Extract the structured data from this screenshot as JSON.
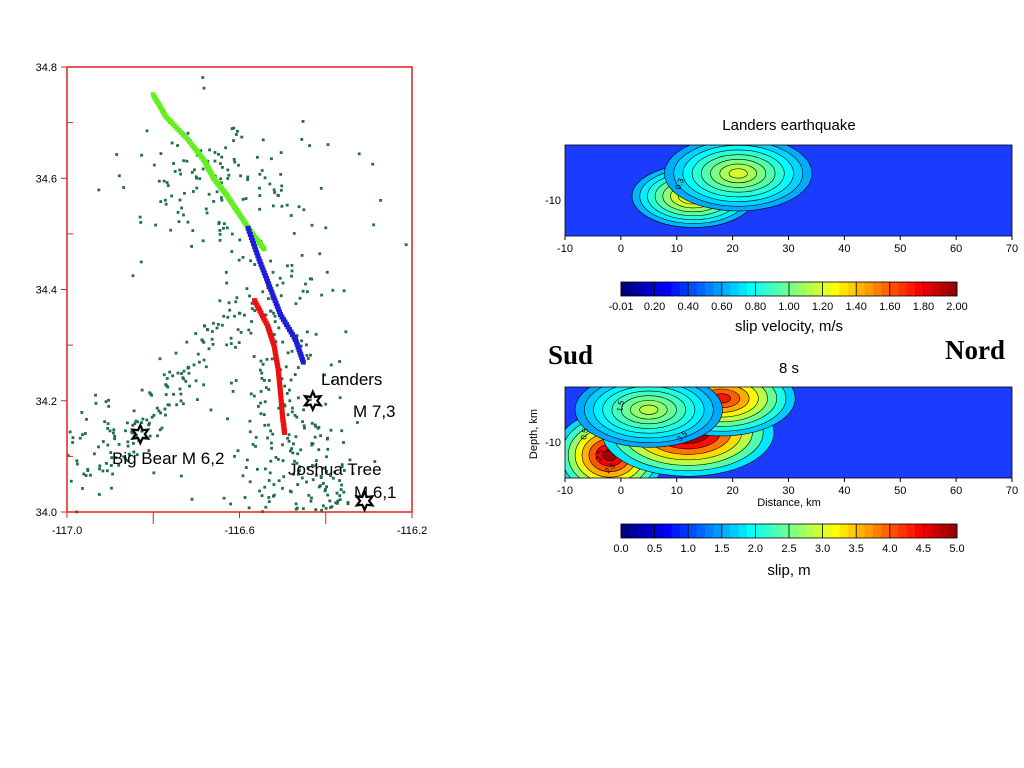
{
  "page": {
    "left_label": "Sud",
    "right_label": "Nord"
  },
  "colors": {
    "map_axis": "#e02020",
    "seismicity": "#1e6e46",
    "segment_north": "#66ee22",
    "segment_middle": "#1e1ed6",
    "segment_south": "#ee1111",
    "field": "#1a3cff",
    "contour": "#000000"
  },
  "chart_data": [
    {
      "type": "scatter",
      "xlim": [
        -117.0,
        -116.2
      ],
      "ylim": [
        34.0,
        34.8
      ],
      "x_ticks": [
        "-117.0",
        "-116.6",
        "-116.2"
      ],
      "y_ticks": [
        "34.0",
        "34.2",
        "34.4",
        "34.6",
        "34.8"
      ],
      "grid": false,
      "series": [
        {
          "segment": "north",
          "color": "green",
          "points": [
            [
              -116.8,
              34.75
            ],
            [
              -116.77,
              34.71
            ],
            [
              -116.72,
              34.67
            ],
            [
              -116.68,
              34.63
            ],
            [
              -116.66,
              34.6
            ],
            [
              -116.63,
              34.57
            ],
            [
              -116.6,
              34.535
            ],
            [
              -116.57,
              34.5
            ],
            [
              -116.54,
              34.47
            ]
          ]
        },
        {
          "segment": "middle",
          "color": "blue",
          "points": [
            [
              -116.58,
              34.51
            ],
            [
              -116.555,
              34.455
            ],
            [
              -116.53,
              34.405
            ],
            [
              -116.505,
              34.355
            ],
            [
              -116.47,
              34.31
            ],
            [
              -116.45,
              34.265
            ]
          ]
        },
        {
          "segment": "south",
          "color": "red",
          "points": [
            [
              -116.565,
              34.38
            ],
            [
              -116.535,
              34.335
            ],
            [
              -116.52,
              34.3
            ],
            [
              -116.51,
              34.255
            ],
            [
              -116.505,
              34.215
            ],
            [
              -116.5,
              34.17
            ],
            [
              -116.495,
              34.14
            ]
          ]
        }
      ],
      "events": [
        {
          "name": "Landers",
          "magnitude": "M 7,3",
          "x": -116.43,
          "y": 34.2
        },
        {
          "name": "Big Bear M 6,2",
          "x": -116.83,
          "y": 34.14
        },
        {
          "name": "Joshua Tree",
          "magnitude": "M 6,1",
          "x": -116.31,
          "y": 34.02
        }
      ]
    },
    {
      "type": "heatmap",
      "title": "Landers earthquake",
      "subtitle": "",
      "xlim": [
        -10,
        70
      ],
      "x_ticks": [
        "-10",
        "0",
        "10",
        "20",
        "30",
        "40",
        "50",
        "60",
        "70"
      ],
      "y_ticks": [
        "-10"
      ],
      "xlabel": "",
      "ylabel": "",
      "contour_labels": [
        "0.3"
      ],
      "colorbar": {
        "label": "slip velocity, m/s",
        "ticks": [
          "-0.01",
          "0.20",
          "0.40",
          "0.60",
          "0.80",
          "1.00",
          "1.20",
          "1.40",
          "1.60",
          "1.80",
          "2.00"
        ]
      },
      "peaks": [
        {
          "x": 13,
          "depth": -9,
          "value": 0.9,
          "spread_x": 5,
          "spread_y": 2.5
        },
        {
          "x": 21,
          "depth": -5,
          "value": 0.7,
          "spread_x": 6,
          "spread_y": 3
        }
      ]
    },
    {
      "type": "heatmap",
      "title": "8 s",
      "xlim": [
        -10,
        70
      ],
      "x_ticks": [
        "-10",
        "0",
        "10",
        "20",
        "30",
        "40",
        "50",
        "60",
        "70"
      ],
      "y_ticks": [
        "-10"
      ],
      "xlabel": "Distance, km",
      "ylabel": "Depth, km",
      "contour_labels": [
        "1.5",
        "0.5",
        "2.5",
        "3.5",
        "2.5"
      ],
      "colorbar": {
        "label": "slip, m",
        "ticks": [
          "0.0",
          "0.5",
          "1.0",
          "1.5",
          "2.0",
          "2.5",
          "3.0",
          "3.5",
          "4.0",
          "4.5",
          "5.0"
        ]
      },
      "peaks": [
        {
          "x": -2,
          "depth": -12,
          "value": 3.8,
          "spread_x": 4.5,
          "spread_y": 3.5
        },
        {
          "x": 12,
          "depth": -8,
          "value": 4.3,
          "spread_x": 7,
          "spread_y": 3.5
        },
        {
          "x": 18,
          "depth": -2,
          "value": 3.2,
          "spread_x": 6,
          "spread_y": 3
        },
        {
          "x": 5,
          "depth": -4,
          "value": 1.6,
          "spread_x": 6,
          "spread_y": 3
        }
      ]
    }
  ]
}
